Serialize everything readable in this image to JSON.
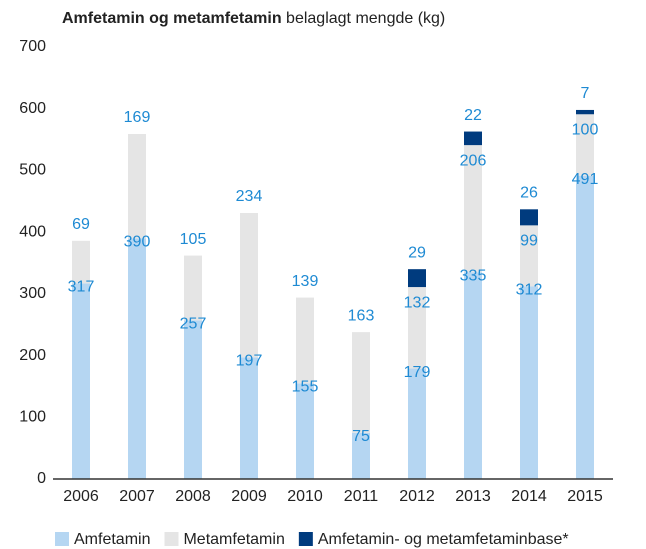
{
  "chart_data": {
    "type": "stacked_bar",
    "title": "Amfetamin og metamfetamin",
    "subtitle": "belaglagt mengde (kg)",
    "categories": [
      "2006",
      "2007",
      "2008",
      "2009",
      "2010",
      "2011",
      "2012",
      "2013",
      "2014",
      "2015"
    ],
    "series": [
      {
        "name": "Amfetamin",
        "color": "#b5d6f2",
        "values": [
          317,
          390,
          257,
          197,
          155,
          75,
          179,
          335,
          312,
          491
        ]
      },
      {
        "name": "Metamfetamin",
        "color": "#e5e5e5",
        "values": [
          69,
          169,
          105,
          234,
          139,
          163,
          132,
          206,
          99,
          100
        ]
      },
      {
        "name": "Amfetamin- og metamfetaminbase*",
        "color": "#003b7e",
        "values": [
          null,
          null,
          null,
          null,
          null,
          null,
          29,
          22,
          26,
          7
        ]
      }
    ],
    "ylim": [
      0,
      700
    ],
    "yticks": [
      0,
      100,
      200,
      300,
      400,
      500,
      600,
      700
    ],
    "grid": false
  }
}
